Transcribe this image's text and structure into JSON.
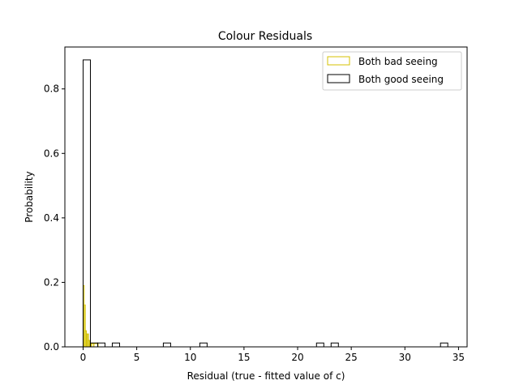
{
  "chart_data": {
    "type": "histogram",
    "title": "Colour Residuals",
    "xlabel": "Residual (true - fitted value of c)",
    "ylabel": "Probability",
    "xlim": [
      -1.7,
      35.8
    ],
    "ylim": [
      0,
      0.93
    ],
    "xticks": [
      0,
      5,
      10,
      15,
      20,
      25,
      30,
      35
    ],
    "xtick_labels": [
      "0",
      "5",
      "10",
      "15",
      "20",
      "25",
      "30",
      "35"
    ],
    "yticks": [
      0.0,
      0.2,
      0.4,
      0.6,
      0.8
    ],
    "ytick_labels": [
      "0.0",
      "0.2",
      "0.4",
      "0.6",
      "0.8"
    ],
    "grid": false,
    "legend_position": "top-right",
    "series": [
      {
        "name": "Both bad seeing",
        "color": "#d4c200",
        "bins": [
          {
            "x0": 0.0,
            "x1": 0.1,
            "y": 0.19
          },
          {
            "x0": 0.1,
            "x1": 0.2,
            "y": 0.13
          },
          {
            "x0": 0.2,
            "x1": 0.3,
            "y": 0.05
          },
          {
            "x0": 0.3,
            "x1": 0.4,
            "y": 0.04
          },
          {
            "x0": 0.4,
            "x1": 0.5,
            "y": 0.04
          },
          {
            "x0": 0.5,
            "x1": 0.6,
            "y": 0.02
          },
          {
            "x0": 0.6,
            "x1": 0.7,
            "y": 0.01
          },
          {
            "x0": 0.7,
            "x1": 0.8,
            "y": 0.01
          },
          {
            "x0": 0.8,
            "x1": 1.0,
            "y": 0.01
          },
          {
            "x0": 1.0,
            "x1": 1.4,
            "y": 0.01
          }
        ]
      },
      {
        "name": "Both good seeing",
        "color": "#000000",
        "bins": [
          {
            "x0": 0.0,
            "x1": 0.68,
            "y": 0.89
          },
          {
            "x0": 0.68,
            "x1": 1.36,
            "y": 0.012
          },
          {
            "x0": 1.36,
            "x1": 2.04,
            "y": 0.012
          },
          {
            "x0": 2.72,
            "x1": 3.4,
            "y": 0.012
          },
          {
            "x0": 7.48,
            "x1": 8.16,
            "y": 0.012
          },
          {
            "x0": 10.88,
            "x1": 11.56,
            "y": 0.012
          },
          {
            "x0": 21.76,
            "x1": 22.44,
            "y": 0.012
          },
          {
            "x0": 23.12,
            "x1": 23.8,
            "y": 0.012
          },
          {
            "x0": 33.32,
            "x1": 34.0,
            "y": 0.012
          }
        ]
      }
    ]
  }
}
